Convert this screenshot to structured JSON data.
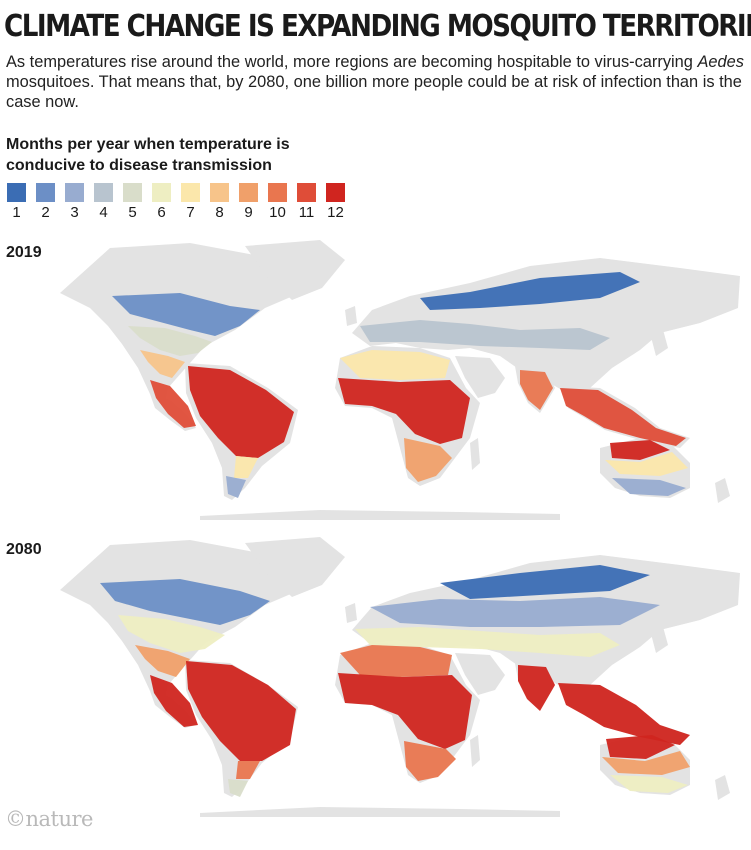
{
  "title": "CLIMATE CHANGE IS EXPANDING MOSQUITO TERRITORIES",
  "subtitle": {
    "part1": "As temperatures rise around the world, more regions are becoming hospitable to virus-carrying ",
    "italic": "Aedes",
    "part2": " mosquitoes. That means that, by 2080, one billion more people could be at risk of infection than is the case now."
  },
  "legend": {
    "title": "Months per year when temperature is conducive to disease transmission",
    "items": [
      {
        "label": "1",
        "color": "#3b6db4"
      },
      {
        "label": "2",
        "color": "#6c8fc6"
      },
      {
        "label": "3",
        "color": "#98acd0"
      },
      {
        "label": "4",
        "color": "#b8c4cf"
      },
      {
        "label": "5",
        "color": "#d9ddca"
      },
      {
        "label": "6",
        "color": "#eeeec2"
      },
      {
        "label": "7",
        "color": "#fbe7ab"
      },
      {
        "label": "8",
        "color": "#f7c48a"
      },
      {
        "label": "9",
        "color": "#f0a06a"
      },
      {
        "label": "10",
        "color": "#e9764f"
      },
      {
        "label": "11",
        "color": "#df4d38"
      },
      {
        "label": "12",
        "color": "#d0251f"
      }
    ]
  },
  "maps": [
    {
      "year": "2019"
    },
    {
      "year": "2080"
    }
  ],
  "colors": {
    "land": "#e3e3e3",
    "background": "#ffffff"
  },
  "logo": "©nature"
}
